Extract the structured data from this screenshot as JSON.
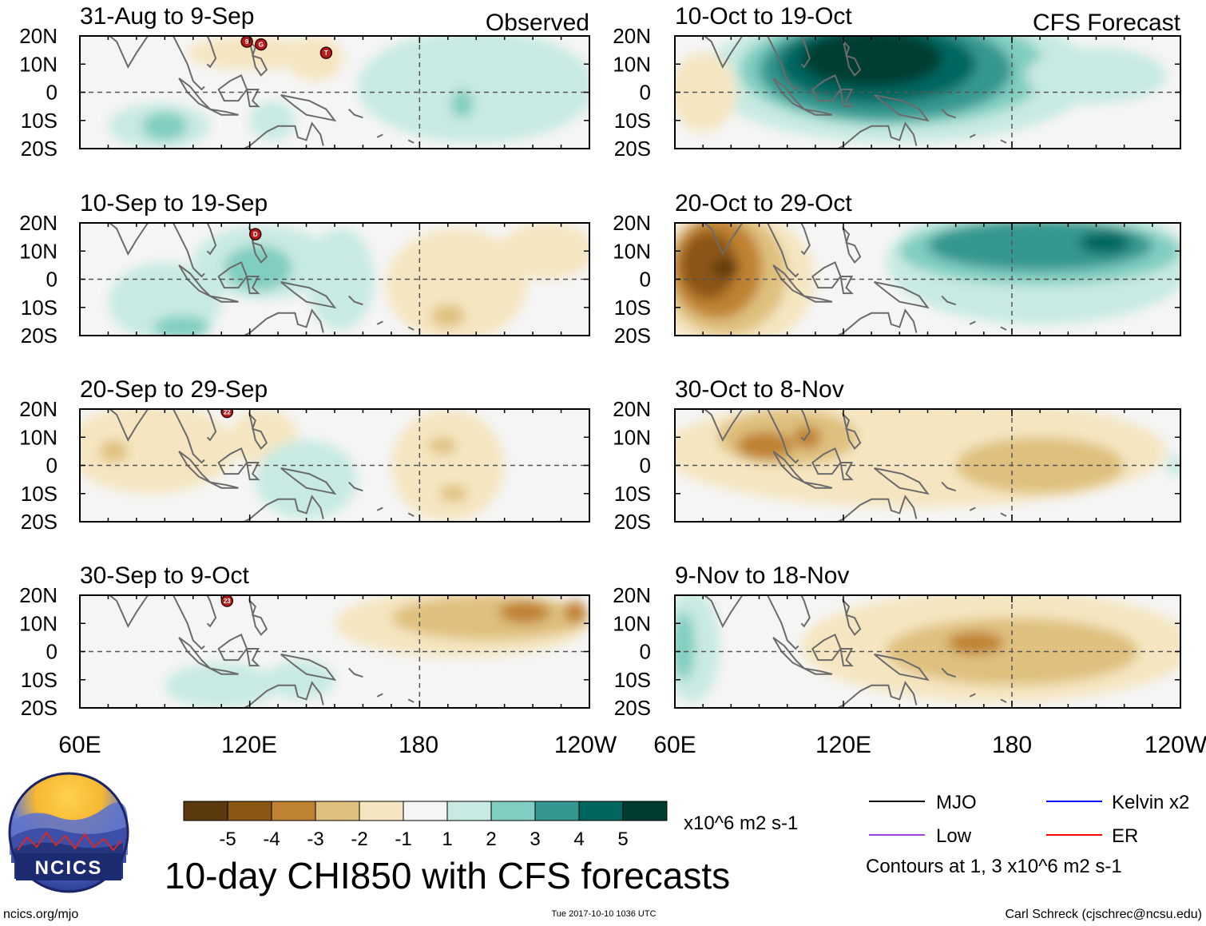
{
  "figure": {
    "main_title": "10-day CHI850 with CFS forecasts",
    "observed_label": "Observed",
    "forecast_label": "CFS Forecast",
    "logo_text": "NCICS",
    "url_text": "ncics.org/mjo",
    "timestamp": "Tue 2017-10-10 1036 UTC",
    "author": "Carl Schreck (cjschrec@ncsu.edu)",
    "units": "x10^6 m2 s-1",
    "contour_note": "Contours at 1, 3 x10^6 m2 s-1"
  },
  "colors": {
    "levels": [
      {
        "label": "-5",
        "color": "#5b3a10"
      },
      {
        "label": "-4",
        "color": "#8b5513"
      },
      {
        "label": "-3",
        "color": "#bf8232"
      },
      {
        "label": "-2",
        "color": "#dfc07e"
      },
      {
        "label": "-1",
        "color": "#f5e6c1"
      },
      {
        "label": "1",
        "color": "#f5f5f5"
      },
      {
        "label": "2",
        "color": "#c8eae2"
      },
      {
        "label": "3",
        "color": "#80cdc1"
      },
      {
        "label": "4",
        "color": "#35978f"
      },
      {
        "label": "5",
        "color": "#01665e"
      },
      {
        "label": "",
        "color": "#003c30"
      }
    ],
    "ticks": [
      "-5",
      "-4",
      "-3",
      "-2",
      "-1",
      "1",
      "2",
      "3",
      "4",
      "5"
    ]
  },
  "legend": [
    {
      "name": "MJO",
      "color": "#000000"
    },
    {
      "name": "Low",
      "color": "#a040e0"
    },
    {
      "name": "Kelvin x2",
      "color": "#0000ff"
    },
    {
      "name": "ER",
      "color": "#ff0000"
    }
  ],
  "chart_data": {
    "type": "heatmap",
    "variable": "CHI850 (10-day mean)",
    "lat_labels": [
      "20N",
      "10N",
      "0",
      "10S",
      "20S"
    ],
    "lat_range": [
      -20,
      20
    ],
    "lon_labels": [
      "60E",
      "120E",
      "180",
      "120W"
    ],
    "lon_range": [
      60,
      240
    ],
    "panels": [
      {
        "title": "31-Aug to 9-Sep",
        "source": "Observed",
        "blobs": [
          {
            "lon": 120,
            "lat": 14,
            "rlon": 22,
            "rlat": 6,
            "level": -1
          },
          {
            "lon": 143,
            "lat": 12,
            "rlon": 10,
            "rlat": 8,
            "level": -1
          },
          {
            "lon": 200,
            "lat": 2,
            "rlon": 42,
            "rlat": 20,
            "level": 2
          },
          {
            "lon": 195,
            "lat": -4,
            "rlon": 4,
            "rlat": 5,
            "level": 3
          },
          {
            "lon": 88,
            "lat": -12,
            "rlon": 18,
            "rlat": 8,
            "level": 2
          },
          {
            "lon": 90,
            "lat": -12,
            "rlon": 8,
            "rlat": 5,
            "level": 3
          },
          {
            "lon": 128,
            "lat": -10,
            "rlon": 8,
            "rlat": 7,
            "level": 2
          }
        ],
        "storms": [
          {
            "lon": 119,
            "lat": 18,
            "label": "9"
          },
          {
            "lon": 124,
            "lat": 17,
            "label": "G"
          },
          {
            "lon": 147,
            "lat": 14,
            "label": "T"
          }
        ]
      },
      {
        "title": "10-Sep to 19-Sep",
        "source": "Observed",
        "blobs": [
          {
            "lon": 125,
            "lat": 6,
            "rlon": 25,
            "rlat": 13,
            "level": 2
          },
          {
            "lon": 123,
            "lat": 4,
            "rlon": 12,
            "rlat": 8,
            "level": 3
          },
          {
            "lon": 90,
            "lat": -8,
            "rlon": 20,
            "rlat": 14,
            "level": 2
          },
          {
            "lon": 96,
            "lat": -17,
            "rlon": 10,
            "rlat": 4,
            "level": 3
          },
          {
            "lon": 152,
            "lat": 0,
            "rlon": 12,
            "rlat": 18,
            "level": 2
          },
          {
            "lon": 193,
            "lat": -2,
            "rlon": 25,
            "rlat": 20,
            "level": -1
          },
          {
            "lon": 190,
            "lat": -13,
            "rlon": 6,
            "rlat": 4,
            "level": -2
          },
          {
            "lon": 225,
            "lat": 10,
            "rlon": 17,
            "rlat": 10,
            "level": -1
          }
        ],
        "storms": [
          {
            "lon": 122,
            "lat": 16,
            "label": "D"
          }
        ]
      },
      {
        "title": "20-Sep to 29-Sep",
        "source": "Observed",
        "blobs": [
          {
            "lon": 85,
            "lat": 6,
            "rlon": 30,
            "rlat": 16,
            "level": -1
          },
          {
            "lon": 72,
            "lat": 5,
            "rlon": 5,
            "rlat": 4,
            "level": -2
          },
          {
            "lon": 125,
            "lat": 10,
            "rlon": 12,
            "rlat": 10,
            "level": -1
          },
          {
            "lon": 140,
            "lat": -5,
            "rlon": 18,
            "rlat": 14,
            "level": 2
          },
          {
            "lon": 190,
            "lat": 0,
            "rlon": 20,
            "rlat": 20,
            "level": -1
          },
          {
            "lon": 188,
            "lat": 7,
            "rlon": 5,
            "rlat": 3,
            "level": -2
          },
          {
            "lon": 192,
            "lat": -10,
            "rlon": 5,
            "rlat": 3,
            "level": -2
          }
        ],
        "storms": [
          {
            "lon": 112,
            "lat": 19,
            "label": "22"
          }
        ]
      },
      {
        "title": "30-Sep to 9-Oct",
        "source": "Observed",
        "blobs": [
          {
            "lon": 195,
            "lat": 10,
            "rlon": 45,
            "rlat": 12,
            "level": -1
          },
          {
            "lon": 205,
            "lat": 12,
            "rlon": 35,
            "rlat": 8,
            "level": -2
          },
          {
            "lon": 217,
            "lat": 14,
            "rlon": 9,
            "rlat": 4,
            "level": -3
          },
          {
            "lon": 235,
            "lat": 14,
            "rlon": 4,
            "rlat": 4,
            "level": -3
          },
          {
            "lon": 110,
            "lat": -12,
            "rlon": 20,
            "rlat": 8,
            "level": 2
          },
          {
            "lon": 138,
            "lat": -10,
            "rlon": 12,
            "rlat": 7,
            "level": 2
          }
        ],
        "storms": [
          {
            "lon": 112,
            "lat": 18,
            "label": "23"
          }
        ]
      },
      {
        "title": "10-Oct to 19-Oct",
        "source": "CFS Forecast",
        "blobs": [
          {
            "lon": 140,
            "lat": 6,
            "rlon": 70,
            "rlat": 24,
            "level": 2
          },
          {
            "lon": 138,
            "lat": 8,
            "rlon": 55,
            "rlat": 20,
            "level": 3
          },
          {
            "lon": 135,
            "lat": 8,
            "rlon": 45,
            "rlat": 18,
            "level": 4
          },
          {
            "lon": 132,
            "lat": 10,
            "rlon": 35,
            "rlat": 14,
            "level": 5
          },
          {
            "lon": 130,
            "lat": 12,
            "rlon": 25,
            "rlat": 10,
            "level": 6
          },
          {
            "lon": 70,
            "lat": 0,
            "rlon": 12,
            "rlat": 14,
            "level": -1
          },
          {
            "lon": 210,
            "lat": 6,
            "rlon": 25,
            "rlat": 10,
            "level": 2
          }
        ],
        "storms": []
      },
      {
        "title": "20-Oct to 29-Oct",
        "source": "CFS Forecast",
        "blobs": [
          {
            "lon": 80,
            "lat": 0,
            "rlon": 30,
            "rlat": 25,
            "level": -1
          },
          {
            "lon": 78,
            "lat": 2,
            "rlon": 22,
            "rlat": 22,
            "level": -2
          },
          {
            "lon": 75,
            "lat": 4,
            "rlon": 16,
            "rlat": 18,
            "level": -3
          },
          {
            "lon": 72,
            "lat": 5,
            "rlon": 10,
            "rlat": 12,
            "level": -4
          },
          {
            "lon": 78,
            "lat": 4,
            "rlon": 5,
            "rlat": 3,
            "level": -5
          },
          {
            "lon": 190,
            "lat": 6,
            "rlon": 55,
            "rlat": 22,
            "level": 2
          },
          {
            "lon": 190,
            "lat": 10,
            "rlon": 50,
            "rlat": 12,
            "level": 3
          },
          {
            "lon": 190,
            "lat": 12,
            "rlon": 40,
            "rlat": 9,
            "level": 4
          },
          {
            "lon": 213,
            "lat": 13,
            "rlon": 9,
            "rlat": 4,
            "level": 5
          }
        ],
        "storms": []
      },
      {
        "title": "30-Oct to 8-Nov",
        "source": "CFS Forecast",
        "blobs": [
          {
            "lon": 145,
            "lat": 5,
            "rlon": 90,
            "rlat": 20,
            "level": -1
          },
          {
            "lon": 190,
            "lat": 0,
            "rlon": 30,
            "rlat": 10,
            "level": -2
          },
          {
            "lon": 100,
            "lat": 10,
            "rlon": 25,
            "rlat": 10,
            "level": -2
          },
          {
            "lon": 92,
            "lat": 7,
            "rlon": 10,
            "rlat": 5,
            "level": -3
          },
          {
            "lon": 107,
            "lat": 10,
            "rlon": 5,
            "rlat": 4,
            "level": -3
          },
          {
            "lon": 238,
            "lat": 0,
            "rlon": 3,
            "rlat": 4,
            "level": 2
          }
        ],
        "storms": []
      },
      {
        "title": "9-Nov to 18-Nov",
        "source": "CFS Forecast",
        "blobs": [
          {
            "lon": 175,
            "lat": 2,
            "rlon": 70,
            "rlat": 20,
            "level": -1
          },
          {
            "lon": 180,
            "lat": 0,
            "rlon": 45,
            "rlat": 12,
            "level": -2
          },
          {
            "lon": 167,
            "lat": 3,
            "rlon": 10,
            "rlat": 4,
            "level": -3
          },
          {
            "lon": 66,
            "lat": 2,
            "rlon": 10,
            "rlat": 20,
            "level": 2
          },
          {
            "lon": 63,
            "lat": 2,
            "rlon": 4,
            "rlat": 12,
            "level": 3
          }
        ],
        "storms": []
      }
    ]
  }
}
